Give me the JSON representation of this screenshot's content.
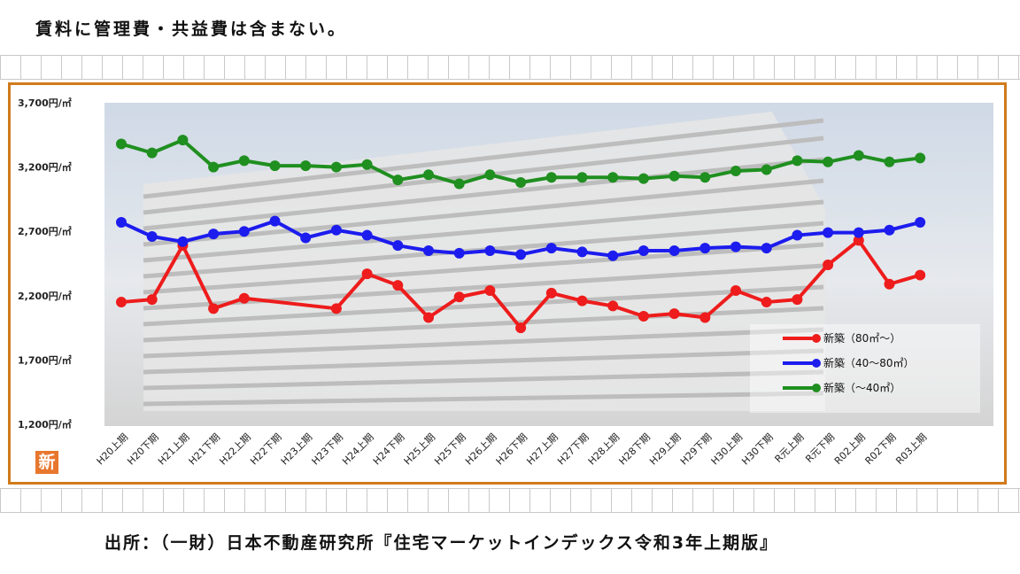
{
  "header_note": "賃料に管理費・共益費は含まない。",
  "source": "出所：（一財）日本不動産研究所『住宅マーケットインデックス令和3年上期版』",
  "badge": "新",
  "colors": {
    "frame": "#d07a1b",
    "badge": "#e8772e"
  },
  "chart_data": {
    "type": "line",
    "title": "",
    "xlabel": "",
    "ylabel": "",
    "ylim": [
      1200,
      3700
    ],
    "yticks": [
      1200,
      1700,
      2200,
      2700,
      3200,
      3700
    ],
    "ytick_labels": [
      "1,200円/㎡",
      "1,700円/㎡",
      "2,200円/㎡",
      "2,700円/㎡",
      "3,200円/㎡",
      "3,700円/㎡"
    ],
    "grid": false,
    "legend_position": "bottom-right",
    "categories": [
      "H20上期",
      "H20下期",
      "H21上期",
      "H21下期",
      "H22上期",
      "H22下期",
      "H23上期",
      "H23下期",
      "H24上期",
      "H24下期",
      "H25上期",
      "H25下期",
      "H26上期",
      "H26下期",
      "H27上期",
      "H27下期",
      "H28上期",
      "H28下期",
      "H29上期",
      "H29下期",
      "H30上期",
      "H30下期",
      "R元上期",
      "R元下期",
      "R02上期",
      "R02下期",
      "R03上期"
    ],
    "series": [
      {
        "name": "新築（80㎡～）",
        "color": "#ee1c1c",
        "values": [
          2150,
          2170,
          2590,
          2100,
          2180,
          null,
          null,
          2100,
          2370,
          2280,
          2030,
          2190,
          2240,
          1950,
          2220,
          2160,
          2120,
          2040,
          2060,
          2030,
          2240,
          2150,
          2170,
          2440,
          2630,
          2290,
          2360
        ]
      },
      {
        "name": "新築（40～80㎡）",
        "color": "#1c1cee",
        "values": [
          2770,
          2660,
          2620,
          2680,
          2700,
          2780,
          2650,
          2710,
          2670,
          2590,
          2550,
          2530,
          2550,
          2520,
          2570,
          2540,
          2510,
          2550,
          2550,
          2570,
          2580,
          2570,
          2670,
          2690,
          2690,
          2710,
          2770
        ]
      },
      {
        "name": "新築（～40㎡）",
        "color": "#1f8f1f",
        "values": [
          3380,
          3310,
          3410,
          3200,
          3250,
          3210,
          3210,
          3200,
          3220,
          3100,
          3140,
          3070,
          3140,
          3080,
          3120,
          3120,
          3120,
          3110,
          3130,
          3120,
          3170,
          3180,
          3250,
          3240,
          3290,
          3240,
          3270
        ]
      }
    ]
  }
}
